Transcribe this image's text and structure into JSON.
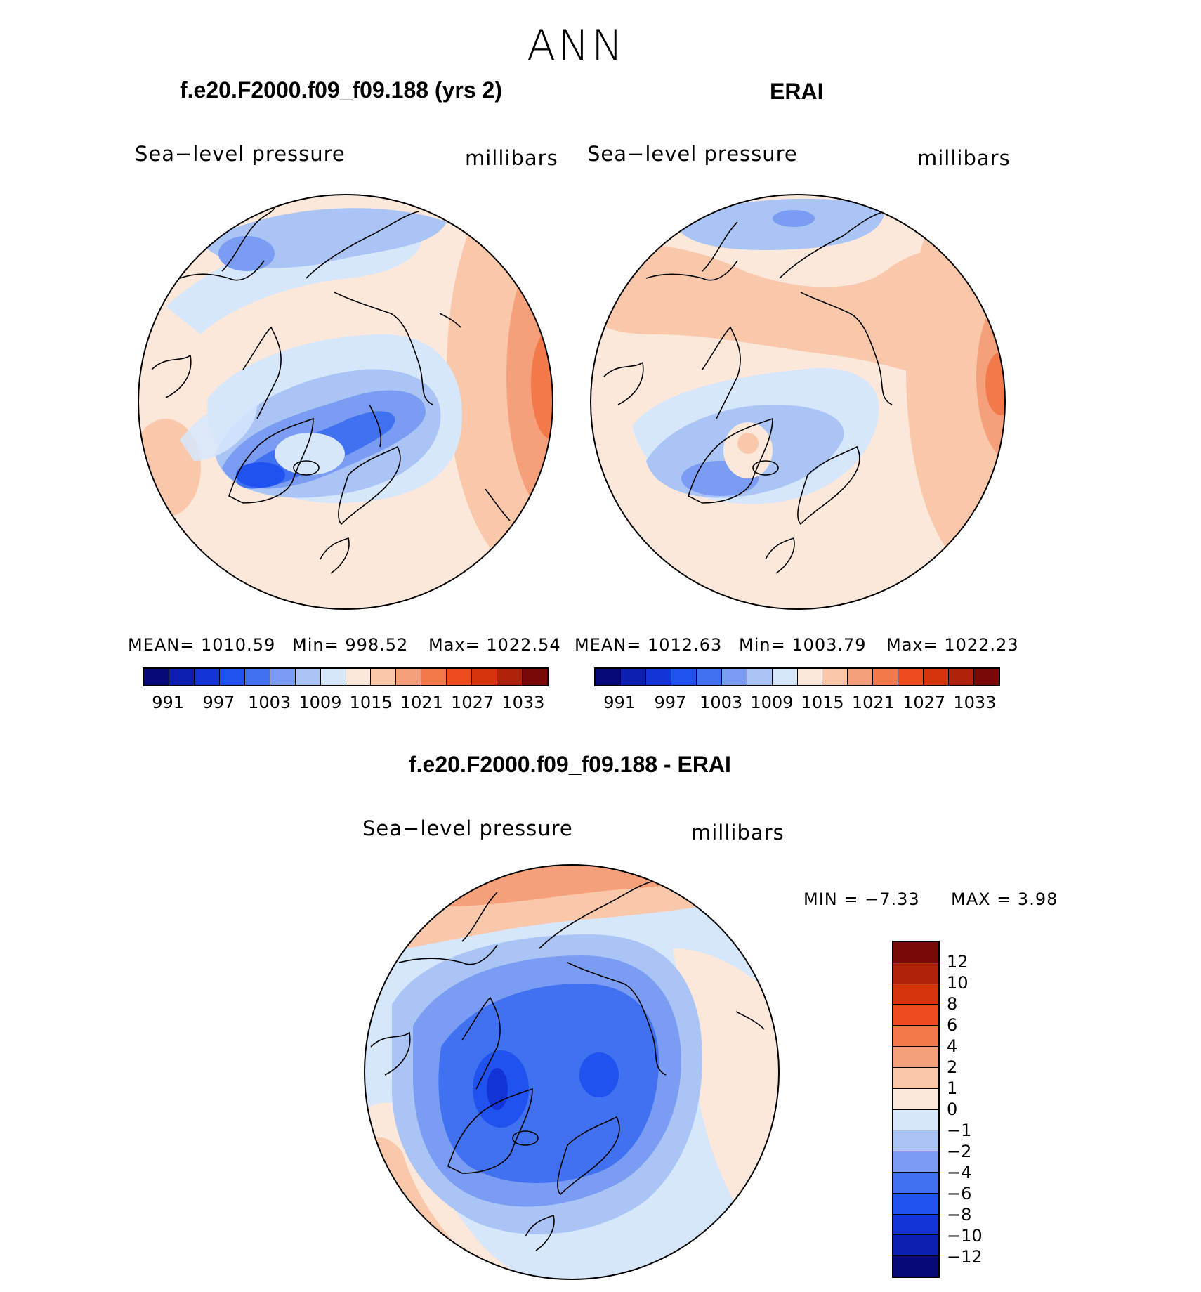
{
  "figure_title": "ANN",
  "colors": {
    "abs_scale": [
      "#08087a",
      "#0c1fb0",
      "#1234d6",
      "#1f52ee",
      "#3f71f0",
      "#7a9cf2",
      "#a9c4f5",
      "#d6e6fb",
      "#fce8da",
      "#f9c8ab",
      "#f6a07b",
      "#f27a4a",
      "#ee4b1f",
      "#d6340d",
      "#b0220a",
      "#7a0808"
    ],
    "diff_scale_top_to_bottom": [
      "#7a0808",
      "#b0220a",
      "#d6340d",
      "#ee4b1f",
      "#f27a4a",
      "#f6a07b",
      "#f9c8ab",
      "#fce8da",
      "#d6e6fb",
      "#a9c4f5",
      "#7a9cf2",
      "#3f71f0",
      "#1f52ee",
      "#1234d6",
      "#0c1fb0",
      "#08087a"
    ]
  },
  "panels": {
    "model": {
      "title": "f.e20.F2000.f09_f09.188 (yrs 2)",
      "variable": "Sea−level pressure",
      "units": "millibars",
      "stats": {
        "mean": "MEAN=  1010.59",
        "min": "Min=  998.52",
        "max": "Max=  1022.54"
      },
      "colorbar_ticks": [
        "991",
        "997",
        "1003",
        "1009",
        "1015",
        "1021",
        "1027",
        "1033"
      ]
    },
    "obs": {
      "title": "ERAI",
      "variable": "Sea−level pressure",
      "units": "millibars",
      "stats": {
        "mean": "MEAN=  1012.63",
        "min": "Min=  1003.79",
        "max": "Max=  1022.23"
      },
      "colorbar_ticks": [
        "991",
        "997",
        "1003",
        "1009",
        "1015",
        "1021",
        "1027",
        "1033"
      ]
    },
    "diff": {
      "title": "f.e20.F2000.f09_f09.188 - ERAI",
      "variable": "Sea−level pressure",
      "units": "millibars",
      "stats": {
        "min": "MIN =    −7.33",
        "max": "MAX =     3.98"
      },
      "colorbar_ticks": [
        "12",
        "10",
        "8",
        "6",
        "4",
        "2",
        "1",
        "0",
        "−1",
        "−2",
        "−4",
        "−6",
        "−8",
        "−10",
        "−12"
      ]
    }
  }
}
